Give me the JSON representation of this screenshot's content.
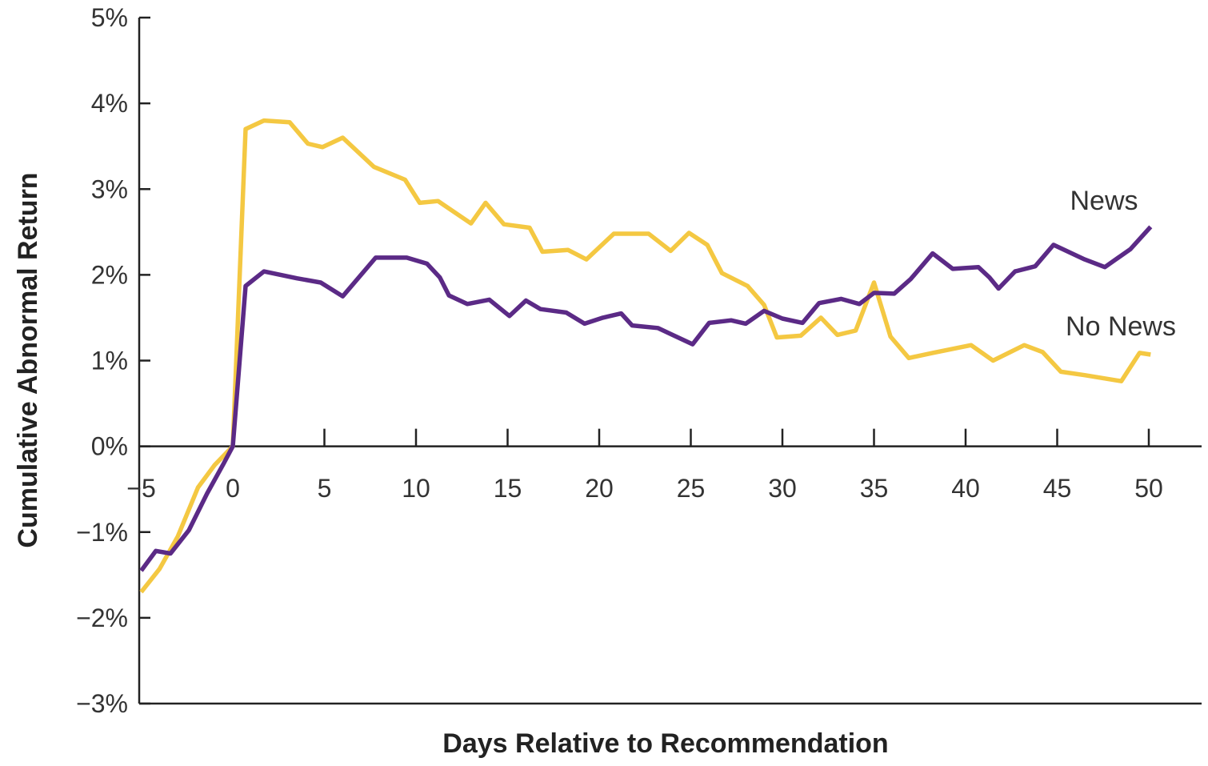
{
  "chart_data": {
    "type": "line",
    "xlabel": "Days Relative to Recommendation",
    "ylabel": "Cumulative Abnormal Return",
    "xlim": [
      -5,
      53
    ],
    "ylim": [
      -3,
      5
    ],
    "x_ticks": [
      -5,
      0,
      5,
      10,
      15,
      20,
      25,
      30,
      35,
      40,
      45,
      50
    ],
    "x_tick_labels": [
      "−5",
      "0",
      "5",
      "10",
      "15",
      "20",
      "25",
      "30",
      "35",
      "40",
      "45",
      "50"
    ],
    "y_ticks": [
      5,
      4,
      3,
      2,
      1,
      0,
      -1,
      -2,
      -3
    ],
    "y_tick_labels": [
      "5%",
      "4%",
      "3%",
      "2%",
      "1%",
      "0%",
      "−1%",
      "−2%",
      "−3%"
    ],
    "grid": false,
    "series": [
      {
        "name": "News",
        "color": "#5b2a86",
        "points": [
          [
            -5,
            -1.45
          ],
          [
            -4.2,
            -1.22
          ],
          [
            -3.4,
            -1.25
          ],
          [
            -2.4,
            -0.98
          ],
          [
            -1.4,
            -0.55
          ],
          [
            -0.5,
            -0.2
          ],
          [
            0,
            0
          ],
          [
            0.7,
            1.87
          ],
          [
            1.7,
            2.04
          ],
          [
            3.5,
            1.96
          ],
          [
            4.8,
            1.91
          ],
          [
            6,
            1.75
          ],
          [
            7.8,
            2.2
          ],
          [
            9.5,
            2.2
          ],
          [
            10.6,
            2.13
          ],
          [
            11.3,
            1.97
          ],
          [
            11.8,
            1.76
          ],
          [
            12.8,
            1.66
          ],
          [
            14,
            1.71
          ],
          [
            15.1,
            1.52
          ],
          [
            16,
            1.7
          ],
          [
            16.8,
            1.6
          ],
          [
            18.2,
            1.56
          ],
          [
            19.2,
            1.43
          ],
          [
            20.2,
            1.5
          ],
          [
            21.2,
            1.55
          ],
          [
            21.8,
            1.41
          ],
          [
            23.2,
            1.38
          ],
          [
            24,
            1.3
          ],
          [
            25.1,
            1.19
          ],
          [
            26,
            1.44
          ],
          [
            27.2,
            1.47
          ],
          [
            28,
            1.43
          ],
          [
            29,
            1.58
          ],
          [
            30,
            1.49
          ],
          [
            31.1,
            1.44
          ],
          [
            32,
            1.67
          ],
          [
            33.2,
            1.72
          ],
          [
            34.2,
            1.66
          ],
          [
            35,
            1.79
          ],
          [
            36.1,
            1.78
          ],
          [
            37,
            1.95
          ],
          [
            38.2,
            2.25
          ],
          [
            39.3,
            2.07
          ],
          [
            40.7,
            2.09
          ],
          [
            41.3,
            1.97
          ],
          [
            41.8,
            1.84
          ],
          [
            42.7,
            2.04
          ],
          [
            43.8,
            2.1
          ],
          [
            44.8,
            2.35
          ],
          [
            46.5,
            2.18
          ],
          [
            47.6,
            2.09
          ],
          [
            49,
            2.3
          ],
          [
            50.1,
            2.56
          ]
        ]
      },
      {
        "name": "No News",
        "color": "#f4c842",
        "points": [
          [
            -5,
            -1.7
          ],
          [
            -4,
            -1.43
          ],
          [
            -3,
            -1.05
          ],
          [
            -1.9,
            -0.48
          ],
          [
            -1,
            -0.22
          ],
          [
            0,
            0
          ],
          [
            0.7,
            3.7
          ],
          [
            1.7,
            3.8
          ],
          [
            3.1,
            3.78
          ],
          [
            4.1,
            3.53
          ],
          [
            4.9,
            3.49
          ],
          [
            6,
            3.6
          ],
          [
            7.7,
            3.26
          ],
          [
            9.4,
            3.11
          ],
          [
            10.2,
            2.84
          ],
          [
            11.2,
            2.86
          ],
          [
            13,
            2.6
          ],
          [
            13.8,
            2.84
          ],
          [
            14.8,
            2.59
          ],
          [
            16.2,
            2.55
          ],
          [
            16.9,
            2.27
          ],
          [
            18.3,
            2.29
          ],
          [
            19.3,
            2.18
          ],
          [
            20.8,
            2.48
          ],
          [
            22.7,
            2.48
          ],
          [
            23.9,
            2.28
          ],
          [
            24.9,
            2.49
          ],
          [
            25.9,
            2.35
          ],
          [
            26.7,
            2.02
          ],
          [
            28.1,
            1.87
          ],
          [
            29,
            1.65
          ],
          [
            29.7,
            1.27
          ],
          [
            31,
            1.29
          ],
          [
            32.1,
            1.5
          ],
          [
            33,
            1.3
          ],
          [
            34,
            1.35
          ],
          [
            35,
            1.91
          ],
          [
            35.9,
            1.28
          ],
          [
            36.9,
            1.03
          ],
          [
            38.2,
            1.09
          ],
          [
            40.3,
            1.18
          ],
          [
            41.5,
            1.0
          ],
          [
            43.2,
            1.18
          ],
          [
            44.2,
            1.1
          ],
          [
            45.2,
            0.87
          ],
          [
            46.5,
            0.83
          ],
          [
            48.5,
            0.76
          ],
          [
            49.5,
            1.09
          ],
          [
            50.1,
            1.07
          ]
        ]
      }
    ],
    "annotations": [
      {
        "text": "News",
        "series": "News"
      },
      {
        "text": "No News",
        "series": "No News"
      }
    ]
  }
}
